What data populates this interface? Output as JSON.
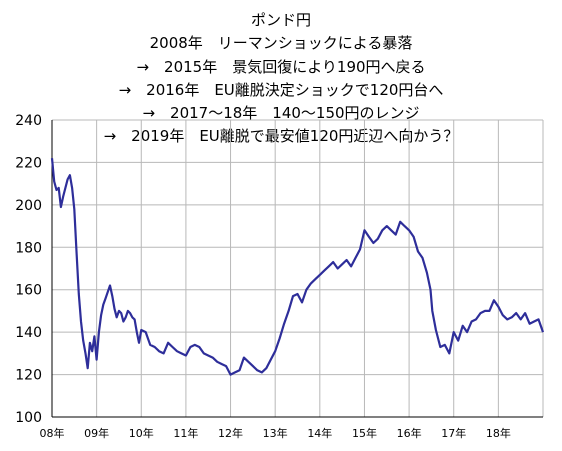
{
  "chart_data": {
    "type": "line",
    "title_lines": [
      "ポンド円",
      "2008年　リーマンショックによる暴落",
      "→　2015年　景気回復により190円へ戻る",
      "→　2016年　EU離脱決定ショックで120円台へ",
      "→　2017～18年　140～150円のレンジ",
      "→　2019年　EU離脱で最安値120円近辺へ向かう？"
    ],
    "xlabel": "",
    "ylabel": "",
    "ylim": [
      100,
      240
    ],
    "yticks": [
      100,
      120,
      140,
      160,
      180,
      200,
      220,
      240
    ],
    "xlim": [
      2008.0,
      2019.0
    ],
    "xticks": [
      {
        "x": 2008,
        "label": "08年"
      },
      {
        "x": 2009,
        "label": "09年"
      },
      {
        "x": 2010,
        "label": "10年"
      },
      {
        "x": 2011,
        "label": "11年"
      },
      {
        "x": 2012,
        "label": "12年"
      },
      {
        "x": 2013,
        "label": "13年"
      },
      {
        "x": 2014,
        "label": "14年"
      },
      {
        "x": 2015,
        "label": "15年"
      },
      {
        "x": 2016,
        "label": "16年"
      },
      {
        "x": 2017,
        "label": "17年"
      },
      {
        "x": 2018,
        "label": "18年"
      }
    ],
    "grid": true,
    "line_color": "#2e2e9a",
    "series": [
      {
        "x": [
          2008.0,
          2008.05,
          2008.1,
          2008.15,
          2008.2,
          2008.25,
          2008.3,
          2008.35,
          2008.4,
          2008.45,
          2008.5,
          2008.55,
          2008.6,
          2008.65,
          2008.7,
          2008.75,
          2008.8,
          2008.85,
          2008.9,
          2008.95,
          2009.0,
          2009.05,
          2009.1,
          2009.15,
          2009.2,
          2009.25,
          2009.3,
          2009.35,
          2009.4,
          2009.45,
          2009.5,
          2009.55,
          2009.6,
          2009.65,
          2009.7,
          2009.75,
          2009.8,
          2009.85,
          2009.9,
          2009.95,
          2010.0,
          2010.1,
          2010.2,
          2010.3,
          2010.4,
          2010.5,
          2010.6,
          2010.7,
          2010.8,
          2010.9,
          2011.0,
          2011.1,
          2011.2,
          2011.3,
          2011.4,
          2011.5,
          2011.6,
          2011.7,
          2011.8,
          2011.9,
          2012.0,
          2012.1,
          2012.2,
          2012.3,
          2012.4,
          2012.5,
          2012.6,
          2012.7,
          2012.8,
          2012.9,
          2013.0,
          2013.1,
          2013.2,
          2013.3,
          2013.4,
          2013.5,
          2013.6,
          2013.7,
          2013.8,
          2013.9,
          2014.0,
          2014.1,
          2014.2,
          2014.3,
          2014.4,
          2014.5,
          2014.6,
          2014.7,
          2014.8,
          2014.9,
          2015.0,
          2015.1,
          2015.2,
          2015.3,
          2015.4,
          2015.5,
          2015.6,
          2015.7,
          2015.8,
          2015.9,
          2016.0,
          2016.1,
          2016.2,
          2016.3,
          2016.4,
          2016.48,
          2016.52,
          2016.6,
          2016.7,
          2016.8,
          2016.9,
          2017.0,
          2017.1,
          2017.2,
          2017.3,
          2017.4,
          2017.5,
          2017.6,
          2017.7,
          2017.8,
          2017.9,
          2018.0,
          2018.1,
          2018.2,
          2018.3,
          2018.4,
          2018.5,
          2018.6,
          2018.7,
          2018.8,
          2018.9,
          2019.0
        ],
        "values": [
          222,
          211,
          207,
          208,
          199,
          204,
          208,
          212,
          214,
          208,
          198,
          178,
          158,
          145,
          136,
          130,
          123,
          135,
          131,
          138,
          127,
          140,
          148,
          153,
          156,
          159,
          162,
          157,
          151,
          147,
          150,
          149,
          145,
          147,
          150,
          149,
          147,
          146,
          140,
          135,
          141,
          140,
          134,
          133,
          131,
          130,
          135,
          133,
          131,
          130,
          129,
          133,
          134,
          133,
          130,
          129,
          128,
          126,
          125,
          124,
          120,
          121,
          122,
          128,
          126,
          124,
          122,
          121,
          123,
          127,
          131,
          137,
          144,
          150,
          157,
          158,
          154,
          160,
          163,
          165,
          167,
          169,
          171,
          173,
          170,
          172,
          174,
          171,
          175,
          179,
          188,
          185,
          182,
          184,
          188,
          190,
          188,
          186,
          192,
          190,
          188,
          185,
          178,
          175,
          168,
          160,
          150,
          141,
          133,
          134,
          130,
          140,
          136,
          143,
          140,
          145,
          146,
          149,
          150,
          150,
          155,
          152,
          148,
          146,
          147,
          149,
          146,
          149,
          144,
          145,
          146,
          140
        ]
      }
    ]
  }
}
